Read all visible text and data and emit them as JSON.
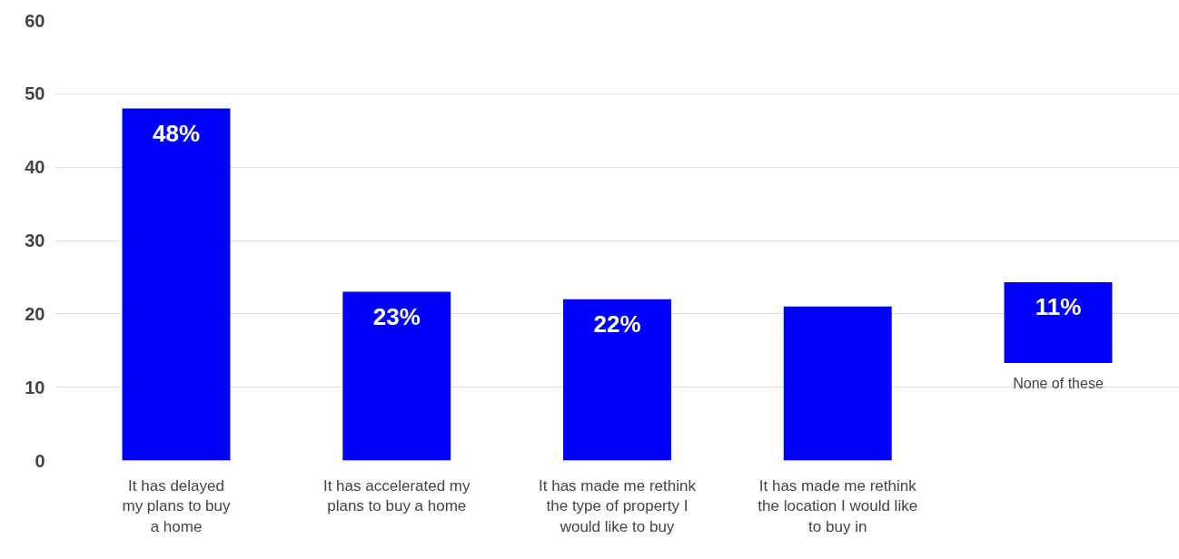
{
  "chart_data": {
    "type": "bar",
    "categories": [
      "It has delayed my plans to buy a home",
      "It has accelerated my plans to buy a home",
      "It has made me rethink the type of property I would like to buy",
      "It has made me rethink the location I would like to buy in",
      "None of these"
    ],
    "values": [
      48,
      23,
      22,
      21,
      11
    ],
    "base": [
      0,
      0,
      0,
      0,
      13.3
    ],
    "value_labels": [
      "48%",
      "23%",
      "22%",
      null,
      "11%"
    ],
    "color": "#0000ff",
    "ylim": [
      0,
      60
    ],
    "yticks": [
      0,
      10,
      20,
      30,
      40,
      50,
      60
    ],
    "grid": "y"
  }
}
